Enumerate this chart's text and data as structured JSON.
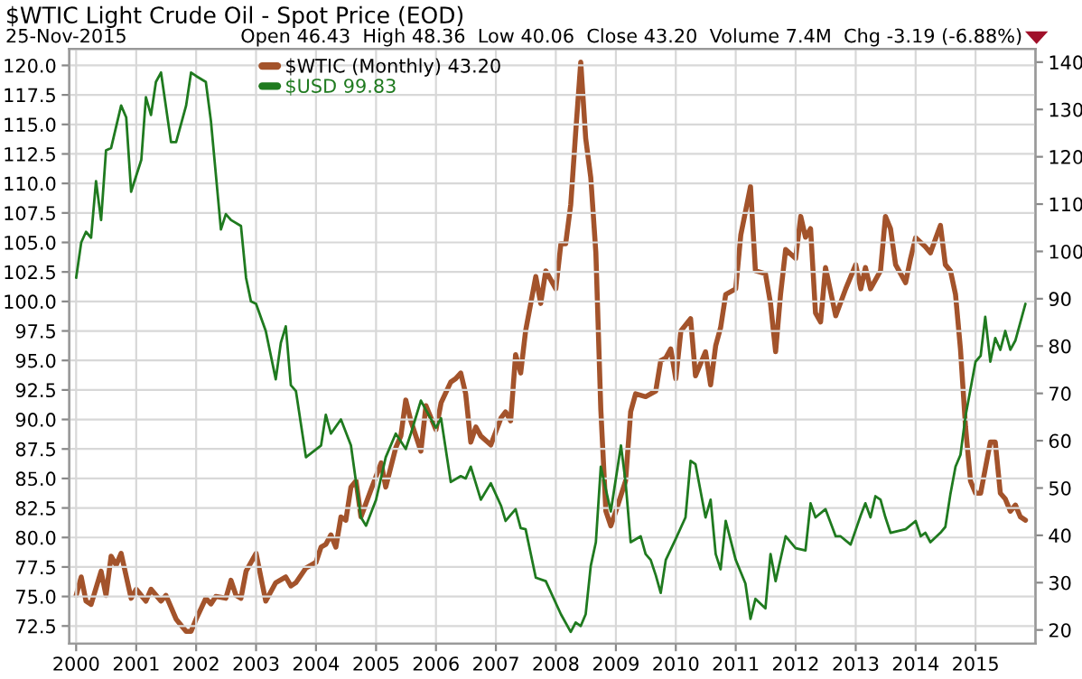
{
  "chart_data": {
    "type": "line",
    "title": "$WTIC Light Crude Oil - Spot Price (EOD)",
    "annotations": [
      "25-Nov-2015",
      "Open 46.43  High 48.36  Low 40.06  Close 43.20  Volume 7.4M  Chg -3.19 (-6.88%)"
    ],
    "xlim": [
      "1999-11-20",
      "2016-01-01"
    ],
    "xticks": [
      {
        "value": "2000-01",
        "label": "2000"
      },
      {
        "value": "2001-01",
        "label": "2001"
      },
      {
        "value": "2002-01",
        "label": "2002"
      },
      {
        "value": "2003-01",
        "label": "2003"
      },
      {
        "value": "2004-01",
        "label": "2004"
      },
      {
        "value": "2005-01",
        "label": "2005"
      },
      {
        "value": "2006-01",
        "label": "2006"
      },
      {
        "value": "2007-01",
        "label": "2007"
      },
      {
        "value": "2008-01",
        "label": "2008"
      },
      {
        "value": "2009-01",
        "label": "2009"
      },
      {
        "value": "2010-01",
        "label": "2010"
      },
      {
        "value": "2011-01",
        "label": "2011"
      },
      {
        "value": "2012-01",
        "label": "2012"
      },
      {
        "value": "2013-01",
        "label": "2013"
      },
      {
        "value": "2014-01",
        "label": "2014"
      },
      {
        "value": "2015-01",
        "label": "2015"
      }
    ],
    "ylim": [
      71.0,
      121.4
    ],
    "yticks": [
      {
        "value": 72.5,
        "label": "72.5"
      },
      {
        "value": 75,
        "label": "75.0"
      },
      {
        "value": 77.5,
        "label": "77.5"
      },
      {
        "value": 80,
        "label": "80.0"
      },
      {
        "value": 82.5,
        "label": "82.5"
      },
      {
        "value": 85,
        "label": "85.0"
      },
      {
        "value": 87.5,
        "label": "87.5"
      },
      {
        "value": 90,
        "label": "90.0"
      },
      {
        "value": 92.5,
        "label": "92.5"
      },
      {
        "value": 95,
        "label": "95.0"
      },
      {
        "value": 97.5,
        "label": "97.5"
      },
      {
        "value": 100,
        "label": "100.0"
      },
      {
        "value": 102.5,
        "label": "102.5"
      },
      {
        "value": 105,
        "label": "105.0"
      },
      {
        "value": 107.5,
        "label": "107.5"
      },
      {
        "value": 110,
        "label": "110.0"
      },
      {
        "value": 112.5,
        "label": "112.5"
      },
      {
        "value": 115,
        "label": "115.0"
      },
      {
        "value": 117.5,
        "label": "117.5"
      },
      {
        "value": 120,
        "label": "120.0"
      }
    ],
    "y2lim": [
      17.1,
      142.8
    ],
    "y2ticks": [
      20,
      30,
      40,
      50,
      60,
      70,
      80,
      90,
      100,
      110,
      120,
      130,
      140
    ],
    "grid": true,
    "legend": "top left",
    "line_style": "solid",
    "series": [
      {
        "name": "$WTIC (Monthly) 43.20",
        "color": "#a3532b",
        "axis": "y2",
        "x": [
          "2000-01",
          "2000-02",
          "2000-03",
          "2000-04",
          "2000-06",
          "2000-07",
          "2000-08",
          "2000-09",
          "2000-10",
          "2000-12",
          "2001-01",
          "2001-03",
          "2001-04",
          "2001-06",
          "2001-07",
          "2001-09",
          "2001-11",
          "2001-12",
          "2002-01",
          "2002-03",
          "2002-04",
          "2002-05",
          "2002-07",
          "2002-08",
          "2002-09",
          "2002-10",
          "2002-11",
          "2003-01",
          "2003-03",
          "2003-05",
          "2003-07",
          "2003-08",
          "2003-09",
          "2003-11",
          "2004-01",
          "2004-02",
          "2004-03",
          "2004-04",
          "2004-05",
          "2004-06",
          "2004-07",
          "2004-08",
          "2004-09",
          "2004-10",
          "2004-12",
          "2005-02",
          "2005-03",
          "2005-05",
          "2005-06",
          "2005-07",
          "2005-08",
          "2005-10",
          "2005-11",
          "2006-01",
          "2006-02",
          "2006-04",
          "2006-05",
          "2006-06",
          "2006-07",
          "2006-08",
          "2006-09",
          "2006-10",
          "2006-12",
          "2007-02",
          "2007-03",
          "2007-04",
          "2007-05",
          "2007-06",
          "2007-07",
          "2007-09",
          "2007-10",
          "2007-11",
          "2008-01",
          "2008-02",
          "2008-03",
          "2008-04",
          "2008-05",
          "2008-06",
          "2008-07",
          "2008-08",
          "2008-09",
          "2008-10",
          "2008-11",
          "2008-12",
          "2009-01",
          "2009-03",
          "2009-04",
          "2009-05",
          "2009-07",
          "2009-09",
          "2009-10",
          "2009-11",
          "2009-12",
          "2010-01",
          "2010-02",
          "2010-04",
          "2010-05",
          "2010-07",
          "2010-08",
          "2010-09",
          "2010-10",
          "2010-11",
          "2011-01",
          "2011-02",
          "2011-04",
          "2011-05",
          "2011-07",
          "2011-08",
          "2011-09",
          "2011-10",
          "2011-11",
          "2012-01",
          "2012-02",
          "2012-03",
          "2012-04",
          "2012-05",
          "2012-06",
          "2012-07",
          "2012-09",
          "2012-11",
          "2013-01",
          "2013-02",
          "2013-03",
          "2013-04",
          "2013-06",
          "2013-07",
          "2013-08",
          "2013-09",
          "2013-11",
          "2013-12",
          "2014-01",
          "2014-03",
          "2014-04",
          "2014-06",
          "2014-07",
          "2014-08",
          "2014-09",
          "2014-10",
          "2014-11",
          "2014-12",
          "2015-01",
          "2015-02",
          "2015-04",
          "2015-05",
          "2015-06",
          "2015-07",
          "2015-08",
          "2015-09",
          "2015-10",
          "2015-11"
        ],
        "values": [
          27.3,
          31.2,
          26.1,
          25.4,
          32.4,
          27.3,
          35.6,
          33.7,
          36.2,
          26.7,
          28.6,
          26.1,
          28.6,
          26.1,
          27.3,
          22.3,
          19.7,
          19.7,
          22.3,
          26.7,
          25.5,
          27.1,
          26.7,
          30.5,
          27.3,
          26.7,
          32.4,
          36.2,
          26.1,
          30.0,
          31.2,
          29.3,
          30.0,
          33.1,
          34.3,
          37.5,
          38.1,
          40.1,
          37.5,
          43.9,
          43.2,
          50.2,
          51.5,
          43.9,
          49.6,
          55.3,
          50.2,
          58.5,
          61.0,
          68.6,
          64.2,
          57.8,
          67.4,
          62.3,
          68.0,
          72.4,
          73.1,
          74.3,
          69.9,
          59.7,
          62.9,
          61.0,
          59.1,
          64.8,
          66.1,
          64.2,
          78.2,
          74.3,
          83.2,
          94.7,
          89.0,
          95.9,
          92.1,
          101.6,
          101.6,
          109.9,
          125.1,
          140.0,
          123.9,
          115.6,
          99.7,
          66.7,
          45.1,
          42.0,
          45.1,
          51.5,
          66.1,
          69.9,
          69.3,
          70.5,
          76.9,
          77.5,
          79.4,
          73.1,
          83.2,
          85.8,
          73.7,
          78.8,
          71.8,
          80.1,
          83.9,
          90.9,
          92.1,
          103.5,
          113.7,
          95.9,
          95.3,
          89.0,
          78.8,
          90.9,
          100.4,
          98.5,
          107.4,
          103.0,
          104.8,
          87.0,
          85.1,
          96.6,
          86.4,
          92.1,
          97.2,
          92.1,
          96.6,
          92.1,
          95.9,
          107.4,
          104.8,
          97.2,
          93.4,
          98.5,
          102.9,
          101.0,
          99.7,
          105.5,
          97.2,
          95.9,
          90.9,
          79.4,
          62.9,
          51.5,
          48.9,
          48.9,
          59.7,
          59.7,
          48.9,
          47.7,
          45.1,
          46.4,
          43.9,
          43.2
        ]
      },
      {
        "name": "$USD 99.83",
        "color": "#1f7a1f",
        "x": [
          "2000-01",
          "2000-02",
          "2000-03",
          "2000-04",
          "2000-05",
          "2000-06",
          "2000-07",
          "2000-08",
          "2000-10",
          "2000-11",
          "2000-12",
          "2001-02",
          "2001-03",
          "2001-04",
          "2001-05",
          "2001-06",
          "2001-08",
          "2001-09",
          "2001-11",
          "2001-12",
          "2002-01",
          "2002-03",
          "2002-04",
          "2002-06",
          "2002-07",
          "2002-08",
          "2002-10",
          "2002-11",
          "2002-12",
          "2003-01",
          "2003-03",
          "2003-05",
          "2003-06",
          "2003-07",
          "2003-08",
          "2003-09",
          "2003-11",
          "2004-02",
          "2004-03",
          "2004-04",
          "2004-06",
          "2004-08",
          "2004-10",
          "2004-11",
          "2005-01",
          "2005-03",
          "2005-05",
          "2005-07",
          "2005-08",
          "2005-10",
          "2005-11",
          "2006-01",
          "2006-02",
          "2006-04",
          "2006-06",
          "2006-07",
          "2006-08",
          "2006-10",
          "2006-12",
          "2007-02",
          "2007-03",
          "2007-05",
          "2007-06",
          "2007-07",
          "2007-09",
          "2007-11",
          "2008-02",
          "2008-04",
          "2008-05",
          "2008-06",
          "2008-07",
          "2008-08",
          "2008-09",
          "2008-10",
          "2008-12",
          "2009-02",
          "2009-03",
          "2009-04",
          "2009-06",
          "2009-07",
          "2009-08",
          "2009-09",
          "2009-10",
          "2009-11",
          "2010-01",
          "2010-03",
          "2010-04",
          "2010-05",
          "2010-07",
          "2010-08",
          "2010-09",
          "2010-10",
          "2010-11",
          "2011-01",
          "2011-03",
          "2011-04",
          "2011-05",
          "2011-07",
          "2011-08",
          "2011-09",
          "2011-11",
          "2012-01",
          "2012-03",
          "2012-04",
          "2012-05",
          "2012-07",
          "2012-09",
          "2012-10",
          "2012-12",
          "2013-02",
          "2013-03",
          "2013-04",
          "2013-05",
          "2013-06",
          "2013-07",
          "2013-08",
          "2013-11",
          "2014-01",
          "2014-02",
          "2014-03",
          "2014-04",
          "2014-06",
          "2014-07",
          "2014-08",
          "2014-09",
          "2014-10",
          "2014-11",
          "2015-01",
          "2015-02",
          "2015-03",
          "2015-04",
          "2015-05",
          "2015-06",
          "2015-07",
          "2015-08",
          "2015-09",
          "2015-11"
        ],
        "values": [
          102.0,
          105.0,
          105.9,
          105.4,
          110.2,
          106.9,
          112.8,
          113.0,
          116.6,
          115.6,
          109.3,
          112.0,
          117.3,
          115.8,
          118.6,
          119.4,
          113.5,
          113.5,
          116.6,
          119.4,
          119.1,
          118.6,
          115.3,
          106.1,
          107.4,
          106.9,
          106.4,
          102.0,
          100.0,
          99.8,
          97.5,
          93.4,
          96.5,
          97.9,
          92.9,
          92.4,
          86.8,
          87.8,
          90.4,
          88.8,
          90.0,
          87.8,
          81.7,
          81.0,
          83.2,
          86.8,
          88.8,
          87.5,
          88.8,
          91.6,
          90.8,
          89.3,
          90.1,
          84.7,
          85.2,
          85.0,
          86.0,
          83.2,
          84.6,
          82.7,
          81.4,
          82.4,
          80.8,
          80.7,
          76.6,
          76.3,
          73.5,
          72.0,
          72.8,
          72.5,
          73.5,
          77.6,
          79.6,
          86.0,
          82.2,
          87.8,
          84.7,
          79.6,
          80.1,
          78.6,
          78.1,
          76.8,
          75.3,
          78.1,
          79.9,
          81.7,
          86.5,
          86.2,
          81.7,
          83.2,
          78.6,
          77.3,
          81.4,
          78.1,
          76.1,
          73.1,
          74.8,
          74.0,
          78.6,
          76.3,
          80.1,
          79.1,
          78.9,
          82.9,
          81.7,
          82.4,
          80.1,
          80.1,
          79.4,
          81.9,
          82.9,
          81.7,
          83.5,
          83.2,
          81.7,
          80.4,
          80.7,
          81.4,
          80.1,
          80.4,
          79.6,
          80.4,
          80.9,
          83.7,
          86.0,
          87.0,
          90.3,
          94.9,
          95.4,
          98.7,
          94.9,
          96.9,
          95.9,
          97.5,
          95.9,
          96.7,
          99.8
        ]
      }
    ]
  }
}
